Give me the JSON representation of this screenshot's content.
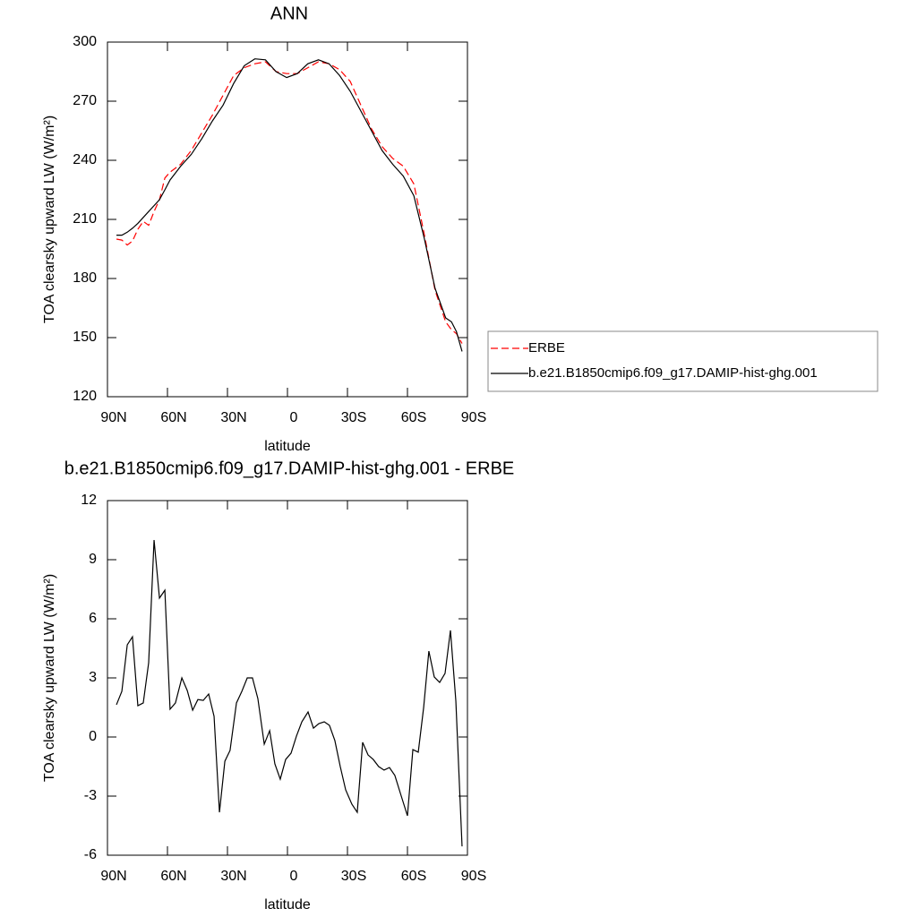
{
  "chart_data": [
    {
      "type": "line",
      "title": "ANN",
      "xlabel": "latitude",
      "ylabel": "TOA clearsky upward LW (W/m²)",
      "x": [
        85.5,
        82.8,
        80.1,
        77.5,
        74.8,
        72.1,
        69.4,
        66.7,
        64.0,
        61.3,
        58.7,
        53.4,
        48.1,
        42.8,
        37.5,
        32.2,
        26.9,
        21.6,
        16.3,
        11.0,
        5.7,
        0.4,
        -4.9,
        -10.2,
        -15.5,
        -20.8,
        -26.1,
        -31.4,
        -36.7,
        -42.0,
        -47.3,
        -52.6,
        -57.9,
        -63.2,
        -68.5,
        -73.8,
        -79.1,
        -82.0,
        -84.5,
        -87.3
      ],
      "series": [
        {
          "name": "ERBE",
          "color": "#ff0000",
          "dashed": true,
          "values": [
            200,
            199.5,
            197,
            199,
            205,
            209,
            207,
            214,
            220,
            231,
            234,
            238,
            245,
            254,
            263,
            273,
            283,
            287,
            289,
            290,
            285,
            284,
            284,
            287,
            290,
            289,
            286,
            280,
            268,
            256,
            247,
            241,
            237,
            228,
            202,
            174,
            158,
            154,
            152,
            147
          ]
        },
        {
          "name": "b.e21.B1850cmip6.f09_g17.DAMIP-hist-ghg.001",
          "color": "#000000",
          "dashed": false,
          "values": [
            202,
            202,
            203.5,
            205.5,
            208,
            211,
            214,
            217,
            220,
            225,
            230,
            237,
            243,
            251,
            260,
            268,
            279,
            288,
            291.5,
            291,
            285,
            282,
            284,
            289,
            291,
            289,
            283,
            275,
            265,
            255,
            245,
            238,
            232,
            222,
            200,
            175,
            160,
            158,
            153,
            143
          ]
        }
      ],
      "xlim": [
        90,
        -90
      ],
      "ylim": [
        120,
        300
      ],
      "xticks": [
        {
          "value": 90,
          "label": "90N"
        },
        {
          "value": 60,
          "label": "60N"
        },
        {
          "value": 30,
          "label": "30N"
        },
        0,
        {
          "value": -30,
          "label": "30S"
        },
        {
          "value": -60,
          "label": "60S"
        },
        {
          "value": -90,
          "label": "90S"
        }
      ],
      "yticks": [
        120,
        150,
        180,
        210,
        240,
        270,
        300
      ],
      "legend": "right"
    },
    {
      "type": "line",
      "title": "b.e21.B1850cmip6.f09_g17.DAMIP-hist-ghg.001 - ERBE",
      "xlabel": "latitude",
      "ylabel": "TOA clearsky upward LW (W/m²)",
      "x": [
        85.5,
        82.8,
        80.1,
        77.5,
        74.8,
        72.1,
        69.4,
        66.7,
        64.0,
        61.3,
        58.7,
        56.0,
        52.8,
        50.1,
        47.4,
        44.8,
        42.1,
        39.4,
        36.7,
        34.0,
        31.3,
        28.7,
        25.5,
        22.8,
        20.1,
        17.5,
        14.8,
        11.6,
        8.9,
        6.3,
        3.6,
        0.9,
        -1.8,
        -4.5,
        -7.2,
        -10.3,
        -13.0,
        -15.7,
        -18.4,
        -21.0,
        -23.7,
        -26.4,
        -29.1,
        -32.2,
        -34.9,
        -37.6,
        -40.3,
        -42.9,
        -45.6,
        -48.3,
        -51.0,
        -53.7,
        -56.9,
        -60.0,
        -62.7,
        -65.4,
        -68.1,
        -70.7,
        -73.4,
        -76.1,
        -78.8,
        -81.5,
        -84.2,
        -87.3
      ],
      "series": [
        {
          "color": "#000000",
          "dashed": false,
          "values": [
            1.64,
            2.32,
            4.68,
            5.09,
            1.59,
            1.73,
            3.77,
            10.0,
            7.05,
            7.45,
            1.41,
            1.73,
            3.0,
            2.36,
            1.36,
            1.9,
            1.86,
            2.18,
            1.05,
            -3.82,
            -1.23,
            -0.68,
            1.73,
            2.32,
            3.0,
            3.0,
            1.95,
            -0.36,
            0.32,
            -1.36,
            -2.14,
            -1.14,
            -0.82,
            0.05,
            0.77,
            1.27,
            0.45,
            0.68,
            0.77,
            0.59,
            -0.18,
            -1.5,
            -2.68,
            -3.41,
            -3.82,
            -0.27,
            -0.91,
            -1.14,
            -1.5,
            -1.68,
            -1.55,
            -1.95,
            -3.0,
            -4.0,
            -0.64,
            -0.77,
            1.5,
            4.36,
            3.05,
            2.77,
            3.23,
            5.41,
            1.82,
            -5.55
          ]
        }
      ],
      "xlim": [
        90,
        -90
      ],
      "ylim": [
        -6,
        12
      ],
      "xticks": [
        {
          "value": 90,
          "label": "90N"
        },
        {
          "value": 60,
          "label": "60N"
        },
        {
          "value": 30,
          "label": "30N"
        },
        0,
        {
          "value": -30,
          "label": "30S"
        },
        {
          "value": -60,
          "label": "60S"
        },
        {
          "value": -90,
          "label": "90S"
        }
      ],
      "yticks": [
        -6,
        -3,
        0,
        3,
        6,
        9,
        12
      ]
    }
  ]
}
